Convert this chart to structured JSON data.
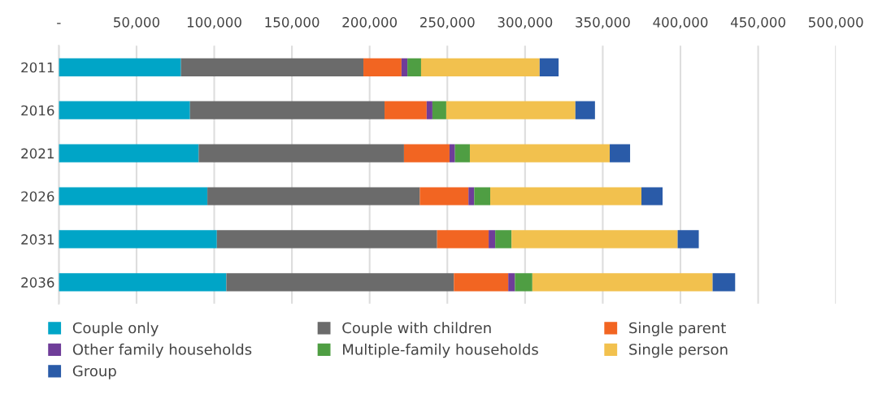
{
  "chart_data": {
    "type": "bar",
    "orientation": "horizontal",
    "stacked": true,
    "categories": [
      "2011",
      "2016",
      "2021",
      "2026",
      "2031",
      "2036"
    ],
    "series": [
      {
        "name": "Couple only",
        "color": "#00a5c7",
        "values": [
          78600,
          84400,
          90000,
          95600,
          101700,
          107800
        ]
      },
      {
        "name": "Couple with children",
        "color": "#6b6b6b",
        "values": [
          117400,
          125200,
          132100,
          136700,
          141700,
          146400
        ]
      },
      {
        "name": "Single parent",
        "color": "#f26522",
        "values": [
          24500,
          27100,
          29300,
          31300,
          33200,
          35000
        ]
      },
      {
        "name": "Other family households",
        "color": "#6f3d99",
        "values": [
          3800,
          3700,
          3500,
          3700,
          4200,
          4300
        ]
      },
      {
        "name": "Multiple-family households",
        "color": "#4f9e43",
        "values": [
          8800,
          8900,
          9600,
          10300,
          10500,
          11200
        ]
      },
      {
        "name": "Single person",
        "color": "#f2c14e",
        "values": [
          76300,
          83100,
          90000,
          97300,
          106900,
          116000
        ]
      },
      {
        "name": "Group",
        "color": "#2a5ba8",
        "values": [
          12200,
          12600,
          13100,
          13600,
          13600,
          14500
        ]
      }
    ],
    "xlim": [
      0,
      500000
    ],
    "xticks": [
      {
        "value": 0,
        "label": "-"
      },
      {
        "value": 50000,
        "label": "50,000"
      },
      {
        "value": 100000,
        "label": "100,000"
      },
      {
        "value": 150000,
        "label": "150,000"
      },
      {
        "value": 200000,
        "label": "200,000"
      },
      {
        "value": 250000,
        "label": "250,000"
      },
      {
        "value": 300000,
        "label": "300,000"
      },
      {
        "value": 350000,
        "label": "350,000"
      },
      {
        "value": 400000,
        "label": "400,000"
      },
      {
        "value": 450000,
        "label": "450,000"
      },
      {
        "value": 500000,
        "label": "500,000"
      }
    ],
    "grid": "x",
    "legend": "bottom"
  }
}
